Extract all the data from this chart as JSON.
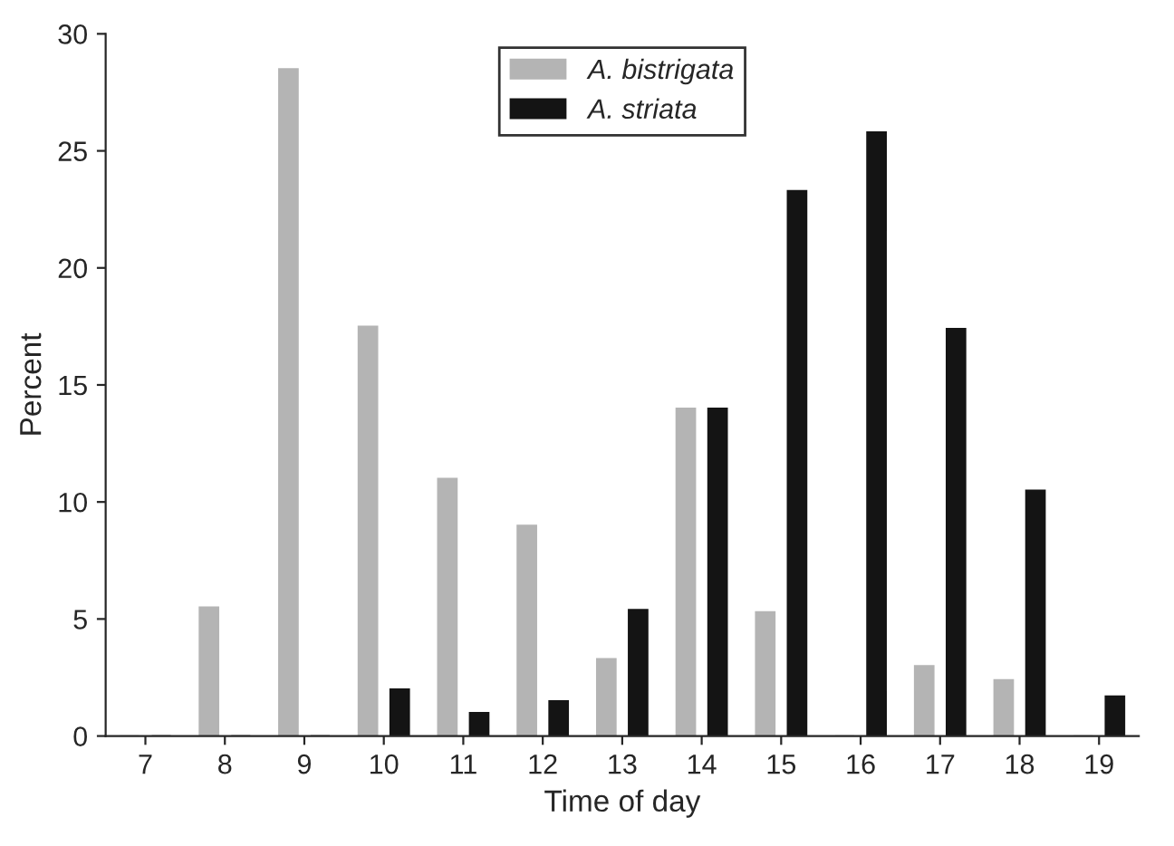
{
  "chart_data": {
    "type": "bar",
    "xlabel": "Time of day",
    "ylabel": "Percent",
    "categories": [
      "7",
      "8",
      "9",
      "10",
      "11",
      "12",
      "13",
      "14",
      "15",
      "16",
      "17",
      "18",
      "19"
    ],
    "series": [
      {
        "name": "A. bistrigata",
        "color": "#b4b4b4",
        "values": [
          0,
          5.5,
          28.5,
          17.5,
          11,
          9,
          3.3,
          14,
          5.3,
          0,
          3,
          2.4,
          0
        ]
      },
      {
        "name": "A. striata",
        "color": "#141414",
        "values": [
          0,
          0,
          0,
          2,
          1,
          1.5,
          5.4,
          14,
          23.3,
          25.8,
          17.4,
          10.5,
          1.7
        ]
      }
    ],
    "ylim": [
      0,
      30
    ],
    "yticks": [
      0,
      5,
      10,
      15,
      20,
      25,
      30
    ],
    "legend": "top center",
    "grid": false
  }
}
